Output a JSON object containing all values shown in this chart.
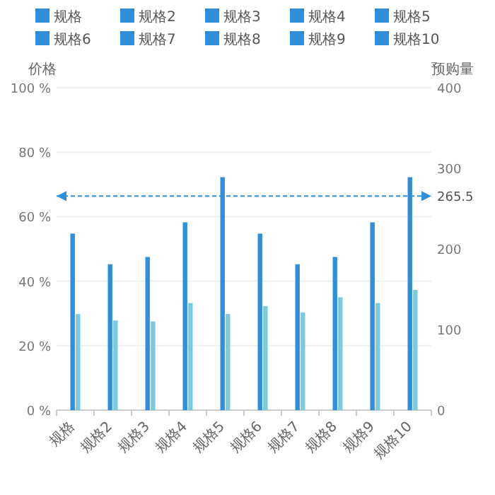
{
  "chart_data": {
    "type": "bar",
    "ylabel": "价格",
    "y2label": "预购量",
    "categories": [
      "规格",
      "规格2",
      "规格3",
      "规格4",
      "规格5",
      "规格6",
      "规格7",
      "规格8",
      "规格9",
      "规格10"
    ],
    "series": [
      {
        "color": "#2f8fdc",
        "axis": "y2",
        "values": [
          219,
          181,
          190,
          233,
          289,
          219,
          181,
          190,
          233,
          289
        ]
      },
      {
        "color": "#7ccbdc",
        "axis": "y",
        "values": [
          29.8,
          27.8,
          27.5,
          33.2,
          29.8,
          32.3,
          30.3,
          35.0,
          33.2,
          37.3
        ]
      }
    ],
    "ylim": [
      0,
      100
    ],
    "yticks": [
      {
        "value": 0,
        "label": "0 %"
      },
      {
        "value": 20,
        "label": "20 %"
      },
      {
        "value": 40,
        "label": "40 %"
      },
      {
        "value": 60,
        "label": "60 %"
      },
      {
        "value": 80,
        "label": "80 %"
      },
      {
        "value": 100,
        "label": "100 %"
      }
    ],
    "y2lim": [
      0,
      400
    ],
    "y2ticks": [
      0,
      100,
      200,
      300,
      400
    ],
    "ref_lines": [
      {
        "axis": "y2",
        "value": 265.5,
        "label": "265.5",
        "color": "#2f8fdc",
        "line_style": "dashed"
      }
    ],
    "grid": "y",
    "legend": "top"
  }
}
